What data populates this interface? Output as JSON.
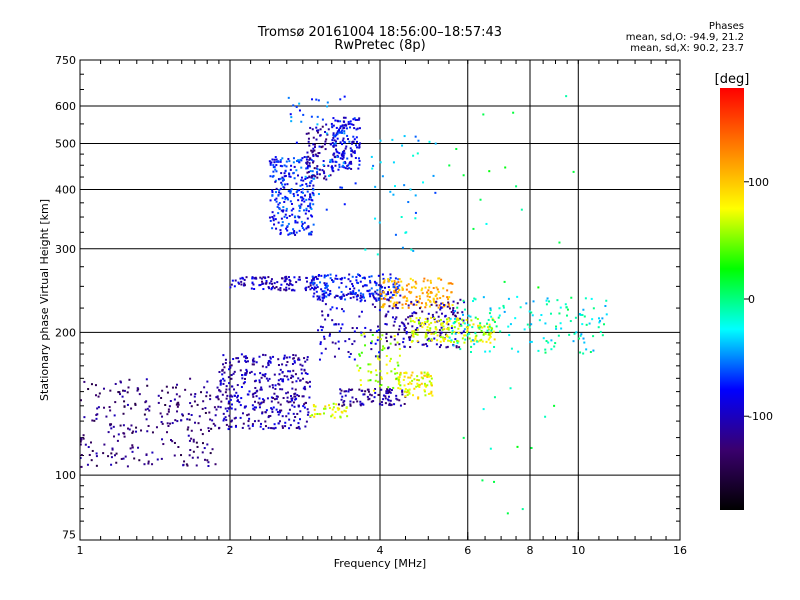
{
  "chart_data": {
    "type": "scatter",
    "title": "Tromsø 20161004 18:56:00–18:57:43",
    "subtitle": "RwPretec (8p)",
    "xlabel": "Frequency [MHz]",
    "ylabel": "Stationary phase Virtual Height [km]",
    "xscale": "log",
    "yscale": "log",
    "xlim": [
      1,
      16
    ],
    "ylim": [
      73,
      750
    ],
    "x_ticks": [
      "1",
      "2",
      "4",
      "6",
      "8",
      "10",
      "16"
    ],
    "y_ticks": [
      "75",
      "100",
      "200",
      "300",
      "400",
      "500",
      "600",
      "750"
    ],
    "grid": true,
    "colorbar": {
      "label": "[deg]",
      "range": [
        -180,
        180
      ],
      "ticks": [
        "100",
        "0",
        "-100"
      ],
      "colors": [
        "#000000",
        "#3a006e",
        "#0000ff",
        "#00ffff",
        "#00ff00",
        "#ffff00",
        "#ff8000",
        "#ff0000"
      ]
    },
    "phases_box": {
      "title": "Phases",
      "line_o": "mean, sd,O: -94.9, 21.2",
      "line_x": "mean, sd,X:  90.2, 23.7"
    },
    "clusters": [
      {
        "x": [
          1.0,
          1.9
        ],
        "y": [
          104,
          160
        ],
        "phase": -125,
        "n": 260
      },
      {
        "x": [
          1.9,
          2.9
        ],
        "y": [
          125,
          180
        ],
        "phase": -105,
        "n": 380
      },
      {
        "x": [
          2.9,
          3.5
        ],
        "y": [
          132,
          142
        ],
        "phase": 75,
        "n": 40
      },
      {
        "x": [
          3.3,
          4.5
        ],
        "y": [
          140,
          152
        ],
        "phase": -115,
        "n": 90
      },
      {
        "x": [
          4.3,
          5.1
        ],
        "y": [
          145,
          165
        ],
        "phase": 80,
        "n": 90
      },
      {
        "x": [
          2.0,
          3.0
        ],
        "y": [
          245,
          262
        ],
        "phase": -100,
        "n": 110
      },
      {
        "x": [
          2.9,
          4.4
        ],
        "y": [
          233,
          265
        ],
        "phase": -80,
        "n": 200
      },
      {
        "x": [
          4.0,
          5.6
        ],
        "y": [
          225,
          260
        ],
        "phase": 110,
        "n": 140
      },
      {
        "x": [
          4.1,
          5.9
        ],
        "y": [
          185,
          235
        ],
        "phase": -110,
        "n": 150
      },
      {
        "x": [
          4.6,
          6.8
        ],
        "y": [
          190,
          215
        ],
        "phase": 70,
        "n": 160
      },
      {
        "x": [
          5.5,
          11.5
        ],
        "y": [
          180,
          240
        ],
        "phase": -20,
        "n": 150
      },
      {
        "x": [
          3.0,
          4.0
        ],
        "y": [
          175,
          240
        ],
        "phase": -95,
        "n": 80
      },
      {
        "x": [
          3.6,
          4.4
        ],
        "y": [
          150,
          200
        ],
        "phase": 60,
        "n": 60
      },
      {
        "x": [
          2.4,
          2.95
        ],
        "y": [
          320,
          470
        ],
        "phase": -75,
        "n": 260
      },
      {
        "x": [
          2.85,
          3.25
        ],
        "y": [
          420,
          550
        ],
        "phase": -110,
        "n": 90
      },
      {
        "x": [
          3.2,
          3.65
        ],
        "y": [
          440,
          570
        ],
        "phase": -85,
        "n": 150
      },
      {
        "x": [
          2.6,
          3.6
        ],
        "y": [
          360,
          640
        ],
        "phase": -60,
        "n": 60
      },
      {
        "x": [
          3.7,
          5.2
        ],
        "y": [
          290,
          520
        ],
        "phase": -40,
        "n": 40
      },
      {
        "x": [
          5.5,
          10.5
        ],
        "y": [
          80,
          650
        ],
        "phase": 0,
        "n": 35
      }
    ]
  }
}
